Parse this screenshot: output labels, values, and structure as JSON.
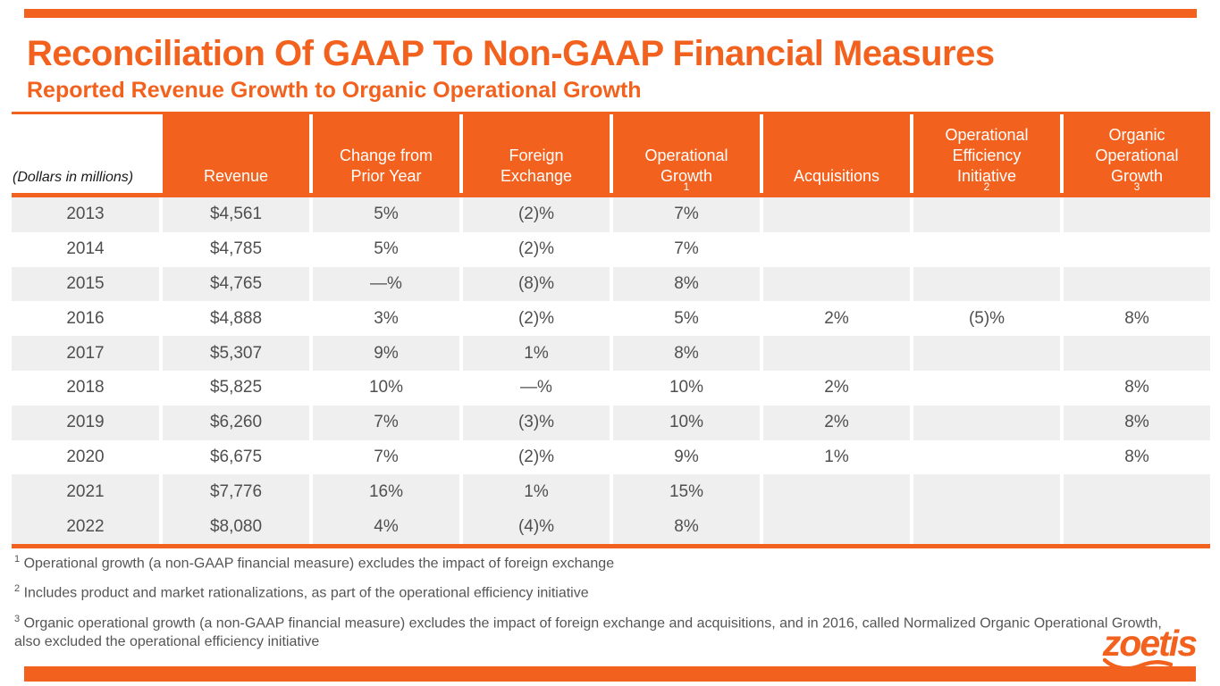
{
  "colors": {
    "accent": "#F2621E",
    "row_shade": "#EFEFEF",
    "cell_text": "#4F4F4F",
    "header_text": "#FFFFFF"
  },
  "header": {
    "title": "Reconciliation Of GAAP To Non-GAAP Financial Measures",
    "subtitle": "Reported Revenue Growth to Organic Operational Growth"
  },
  "table": {
    "unit_label": "(Dollars in millions)",
    "columns": [
      {
        "lines": [
          "Revenue"
        ],
        "sup": ""
      },
      {
        "lines": [
          "Change from",
          "Prior Year"
        ],
        "sup": ""
      },
      {
        "lines": [
          "Foreign",
          "Exchange"
        ],
        "sup": ""
      },
      {
        "lines": [
          "Operational",
          "Growth"
        ],
        "sup": "1"
      },
      {
        "lines": [
          "Acquisitions"
        ],
        "sup": ""
      },
      {
        "lines": [
          "Operational",
          "Efficiency",
          "Initiative"
        ],
        "sup": "2"
      },
      {
        "lines": [
          "Organic",
          "Operational",
          "Growth"
        ],
        "sup": "3"
      }
    ],
    "rows": [
      {
        "year": "2013",
        "shaded": true,
        "values": [
          "$4,561",
          "5%",
          "(2)%",
          "7%",
          "",
          "",
          ""
        ]
      },
      {
        "year": "2014",
        "shaded": false,
        "values": [
          "$4,785",
          "5%",
          "(2)%",
          "7%",
          "",
          "",
          ""
        ]
      },
      {
        "year": "2015",
        "shaded": true,
        "values": [
          "$4,765",
          "—%",
          "(8)%",
          "8%",
          "",
          "",
          ""
        ]
      },
      {
        "year": "2016",
        "shaded": false,
        "values": [
          "$4,888",
          "3%",
          "(2)%",
          "5%",
          "2%",
          "(5)%",
          "8%"
        ]
      },
      {
        "year": "2017",
        "shaded": true,
        "values": [
          "$5,307",
          "9%",
          "1%",
          "8%",
          "",
          "",
          ""
        ]
      },
      {
        "year": "2018",
        "shaded": false,
        "values": [
          "$5,825",
          "10%",
          "—%",
          "10%",
          "2%",
          "",
          "8%"
        ]
      },
      {
        "year": "2019",
        "shaded": true,
        "values": [
          "$6,260",
          "7%",
          "(3)%",
          "10%",
          "2%",
          "",
          "8%"
        ]
      },
      {
        "year": "2020",
        "shaded": false,
        "values": [
          "$6,675",
          "7%",
          "(2)%",
          "9%",
          "1%",
          "",
          "8%"
        ]
      },
      {
        "year": "2021",
        "shaded": true,
        "values": [
          "$7,776",
          "16%",
          "1%",
          "15%",
          "",
          "",
          ""
        ]
      },
      {
        "year": "2022",
        "shaded": true,
        "values": [
          "$8,080",
          "4%",
          "(4)%",
          "8%",
          "",
          "",
          ""
        ]
      }
    ]
  },
  "footnotes": [
    {
      "sup": "1",
      "text": "Operational growth (a non-GAAP financial measure) excludes the impact of foreign exchange"
    },
    {
      "sup": "2",
      "text": "Includes product and market rationalizations, as part of the operational efficiency initiative"
    },
    {
      "sup": "3",
      "text": "Organic operational growth (a non-GAAP financial measure) excludes the impact of foreign exchange and acquisitions, and in 2016, called Normalized Organic Operational Growth, also excluded the operational efficiency initiative"
    }
  ],
  "logo": {
    "text": "zoetis"
  }
}
